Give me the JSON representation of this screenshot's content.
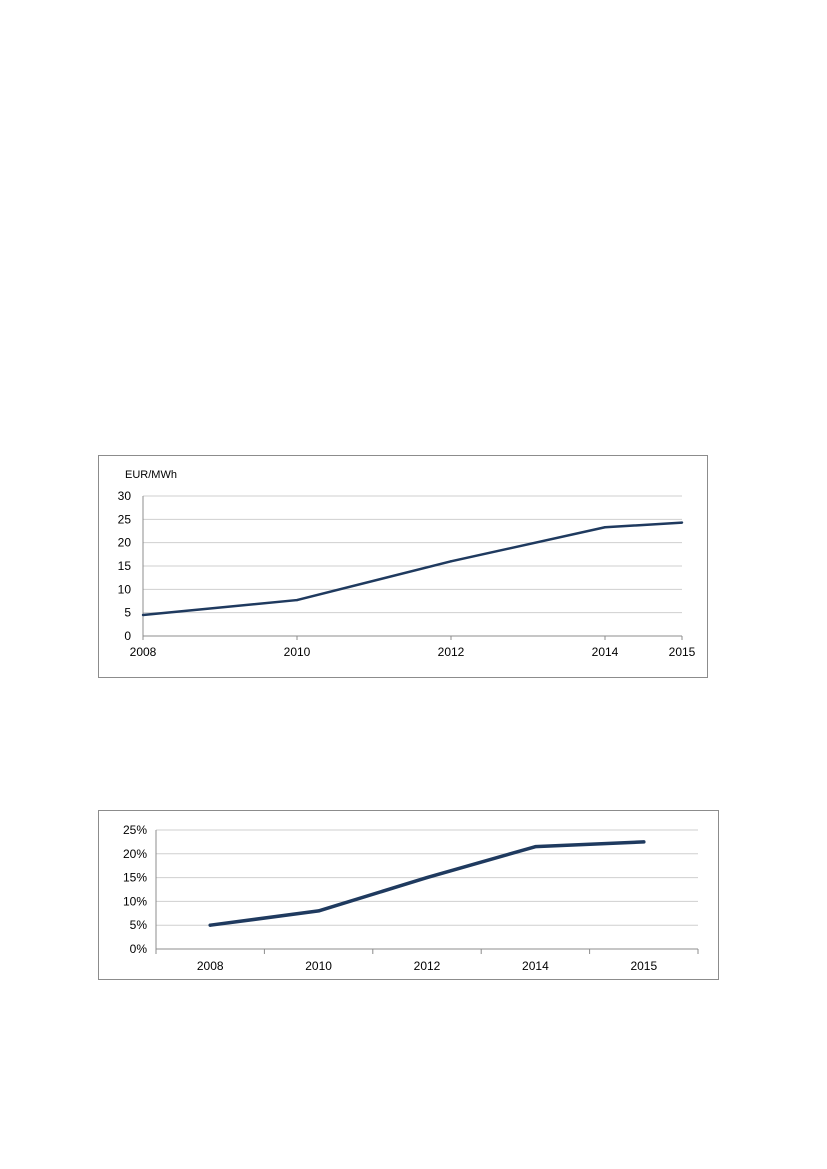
{
  "chart_data": [
    {
      "type": "line",
      "title": "",
      "ylabel": "EUR/MWh",
      "xlabel": "",
      "x": [
        2008,
        2010,
        2012,
        2014,
        2015
      ],
      "xlim": [
        2008,
        2015
      ],
      "ylim": [
        0,
        30
      ],
      "yticks": [
        "0",
        "5",
        "10",
        "15",
        "20",
        "25",
        "30"
      ],
      "xticks": [
        "2008",
        "2010",
        "2012",
        "2014",
        "2015"
      ],
      "grid": "horizontal",
      "series": [
        {
          "name": "",
          "color": "#1f3a5f",
          "points": [
            {
              "x": 2008,
              "y": 4.5
            },
            {
              "x": 2010,
              "y": 7.7
            },
            {
              "x": 2012,
              "y": 16.0
            },
            {
              "x": 2014,
              "y": 23.3
            },
            {
              "x": 2015,
              "y": 24.3
            }
          ]
        }
      ]
    },
    {
      "type": "line",
      "title": "",
      "ylabel": "",
      "xlabel": "",
      "categories": [
        "2008",
        "2010",
        "2012",
        "2014",
        "2015"
      ],
      "ylim": [
        0,
        25
      ],
      "yticks": [
        "0%",
        "5%",
        "10%",
        "15%",
        "20%",
        "25%"
      ],
      "grid": "horizontal",
      "series": [
        {
          "name": "",
          "color": "#1f3a5f",
          "values": [
            5,
            8,
            15,
            21.5,
            22.5
          ]
        }
      ]
    }
  ]
}
